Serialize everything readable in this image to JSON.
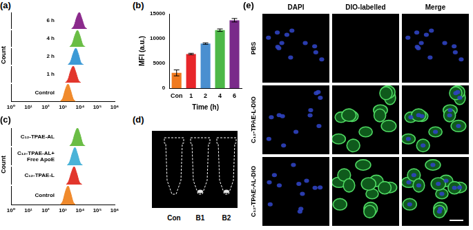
{
  "chart_data": [
    {
      "label": "(a)",
      "type": "ridgeline",
      "ylabel": "Count",
      "log": "x",
      "grid": false,
      "tick_labels": "x",
      "xlim": [
        1,
        1000000
      ],
      "xticks": [
        {
          "value": 1,
          "label": "10⁰"
        },
        {
          "value": 10,
          "label": "10¹"
        },
        {
          "value": 100,
          "label": "10²"
        },
        {
          "value": 1000,
          "label": "10³"
        },
        {
          "value": 10000,
          "label": "10⁴"
        },
        {
          "value": 100000,
          "label": "10⁵"
        },
        {
          "value": 1000000,
          "label": "10⁶"
        }
      ],
      "ylim": [
        0,
        100
      ],
      "series": [
        {
          "name": "6 h",
          "color": "#8b2a8c",
          "x": [
            3200,
            4500,
            6300,
            9000,
            12500,
            18000,
            25000
          ],
          "values": [
            0,
            20,
            70,
            100,
            65,
            15,
            0
          ]
        },
        {
          "name": "4 h",
          "color": "#6abd45",
          "x": [
            2500,
            3500,
            5000,
            7000,
            10000,
            14000,
            20000
          ],
          "values": [
            0,
            20,
            70,
            100,
            65,
            15,
            0
          ]
        },
        {
          "name": "2 h",
          "color": "#3d9ad6",
          "x": [
            2000,
            2800,
            4000,
            5600,
            8000,
            11000,
            16000
          ],
          "values": [
            0,
            20,
            70,
            100,
            65,
            15,
            0
          ]
        },
        {
          "name": "1 h",
          "color": "#e2362c",
          "x": [
            1400,
            2000,
            2800,
            4000,
            5600,
            8000,
            11000
          ],
          "values": [
            0,
            20,
            70,
            100,
            65,
            15,
            0
          ]
        },
        {
          "name": "Control",
          "color": "#f08a2c",
          "x": [
            700,
            1000,
            1400,
            2000,
            2800,
            4000,
            5600
          ],
          "values": [
            0,
            20,
            70,
            100,
            65,
            15,
            0
          ]
        }
      ]
    },
    {
      "label": "(b)",
      "type": "bar",
      "xlabel": "Time (h)",
      "ylabel": "MFI (a.u.)",
      "grid": false,
      "categories": [
        "Con",
        "1",
        "2",
        "4",
        "6"
      ],
      "values": [
        3100,
        6900,
        9000,
        11700,
        13700
      ],
      "errors": [
        600,
        150,
        150,
        250,
        350
      ],
      "colors": [
        "#f07a20",
        "#e8262a",
        "#4a8fd0",
        "#4db848",
        "#7a2a8a"
      ],
      "ylim": [
        0,
        15000
      ],
      "yticks": [
        0,
        5000,
        10000,
        15000
      ]
    },
    {
      "label": "(c)",
      "type": "ridgeline",
      "ylabel": "Count",
      "log": "x",
      "grid": false,
      "tick_labels": "x",
      "xlim": [
        1,
        1000000
      ],
      "xticks": [
        {
          "value": 1,
          "label": "10⁰"
        },
        {
          "value": 10,
          "label": "10¹"
        },
        {
          "value": 100,
          "label": "10²"
        },
        {
          "value": 1000,
          "label": "10³"
        },
        {
          "value": 10000,
          "label": "10⁴"
        },
        {
          "value": 100000,
          "label": "10⁵"
        },
        {
          "value": 1000000,
          "label": "10⁶"
        }
      ],
      "ylim": [
        0,
        100
      ],
      "series": [
        {
          "name": "C₁₂-TPAE-AL",
          "color": "#6abd45",
          "x": [
            2500,
            3500,
            5000,
            7000,
            10000,
            14000,
            20000
          ],
          "values": [
            0,
            20,
            70,
            100,
            65,
            15,
            0
          ]
        },
        {
          "name": "C₁₂-TPAE-AL+ Free ApoE",
          "color": "#4ab3d8",
          "x": [
            1800,
            2500,
            3600,
            5000,
            7000,
            10000,
            14000
          ],
          "values": [
            0,
            20,
            70,
            100,
            65,
            15,
            0
          ]
        },
        {
          "name": "C₁₂-TPAE-L",
          "color": "#e2362c",
          "x": [
            1600,
            2200,
            3200,
            4500,
            6300,
            9000,
            13000
          ],
          "values": [
            0,
            20,
            70,
            100,
            65,
            15,
            0
          ]
        },
        {
          "name": "Control",
          "color": "#f08a2c",
          "x": [
            700,
            1000,
            1400,
            2000,
            2800,
            4000,
            5600
          ],
          "values": [
            0,
            20,
            70,
            100,
            65,
            15,
            0
          ]
        }
      ]
    }
  ],
  "panels": [
    {
      "label": "(d)",
      "type": "photo",
      "tubes": [
        "Con",
        "B1",
        "B2"
      ]
    },
    {
      "label": "(e)",
      "type": "micrographs",
      "columns": [
        "DAPI",
        "DIO-labelled",
        "Merge"
      ],
      "rows": [
        "PBS",
        "C₁₂-TPAE-L-DIO",
        "C₁₂-TPAE-AL-DIO"
      ]
    }
  ]
}
